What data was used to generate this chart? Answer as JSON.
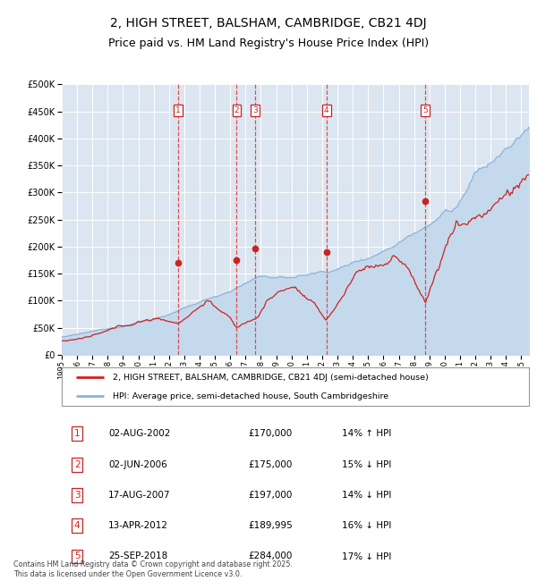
{
  "title": "2, HIGH STREET, BALSHAM, CAMBRIDGE, CB21 4DJ",
  "subtitle": "Price paid vs. HM Land Registry's House Price Index (HPI)",
  "hpi_label": "HPI: Average price, semi-detached house, South Cambridgeshire",
  "price_label": "2, HIGH STREET, BALSHAM, CAMBRIDGE, CB21 4DJ (semi-detached house)",
  "footer": "Contains HM Land Registry data © Crown copyright and database right 2025.\nThis data is licensed under the Open Government Licence v3.0.",
  "transactions": [
    {
      "num": 1,
      "date": "02-AUG-2002",
      "price": 170000,
      "pct": "14%",
      "dir": "↑"
    },
    {
      "num": 2,
      "date": "02-JUN-2006",
      "price": 175000,
      "pct": "15%",
      "dir": "↓"
    },
    {
      "num": 3,
      "date": "17-AUG-2007",
      "price": 197000,
      "pct": "14%",
      "dir": "↓"
    },
    {
      "num": 4,
      "date": "13-APR-2012",
      "price": 189995,
      "pct": "16%",
      "dir": "↓"
    },
    {
      "num": 5,
      "date": "25-SEP-2018",
      "price": 284000,
      "pct": "17%",
      "dir": "↓"
    }
  ],
  "transaction_x": [
    2002.583,
    2006.417,
    2007.633,
    2012.283,
    2018.729
  ],
  "transaction_y_price": [
    170000,
    175000,
    197000,
    189995,
    284000
  ],
  "ylim": [
    0,
    500000
  ],
  "xlim_start": 1995.0,
  "xlim_end": 2025.5,
  "background_color": "#dce6f1",
  "grid_color": "#ffffff",
  "hpi_color": "#8ab4d8",
  "hpi_fill_color": "#c5d9ec",
  "price_color": "#cc2222",
  "vline_color": "#dd3333",
  "label_box_color": "#cc2222",
  "title_fontsize": 10,
  "subtitle_fontsize": 9
}
